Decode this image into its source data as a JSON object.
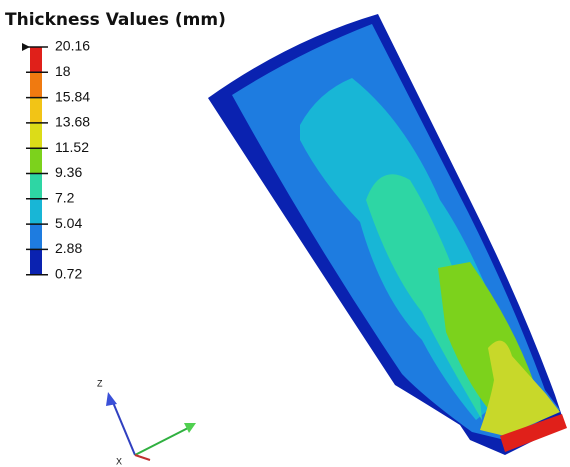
{
  "legend": {
    "title": "Thickness Values (mm)",
    "labels": [
      "20.16",
      "18",
      "15.84",
      "13.68",
      "11.52",
      "9.36",
      "7.2",
      "5.04",
      "2.88",
      "0.72"
    ],
    "colors": [
      "#e0201a",
      "#f07a10",
      "#f2c416",
      "#dcdc18",
      "#7cd21c",
      "#2ed6a4",
      "#18b6d6",
      "#1e7ce0",
      "#0a22b0"
    ]
  },
  "axes": {
    "z": "Z",
    "x": "X"
  }
}
